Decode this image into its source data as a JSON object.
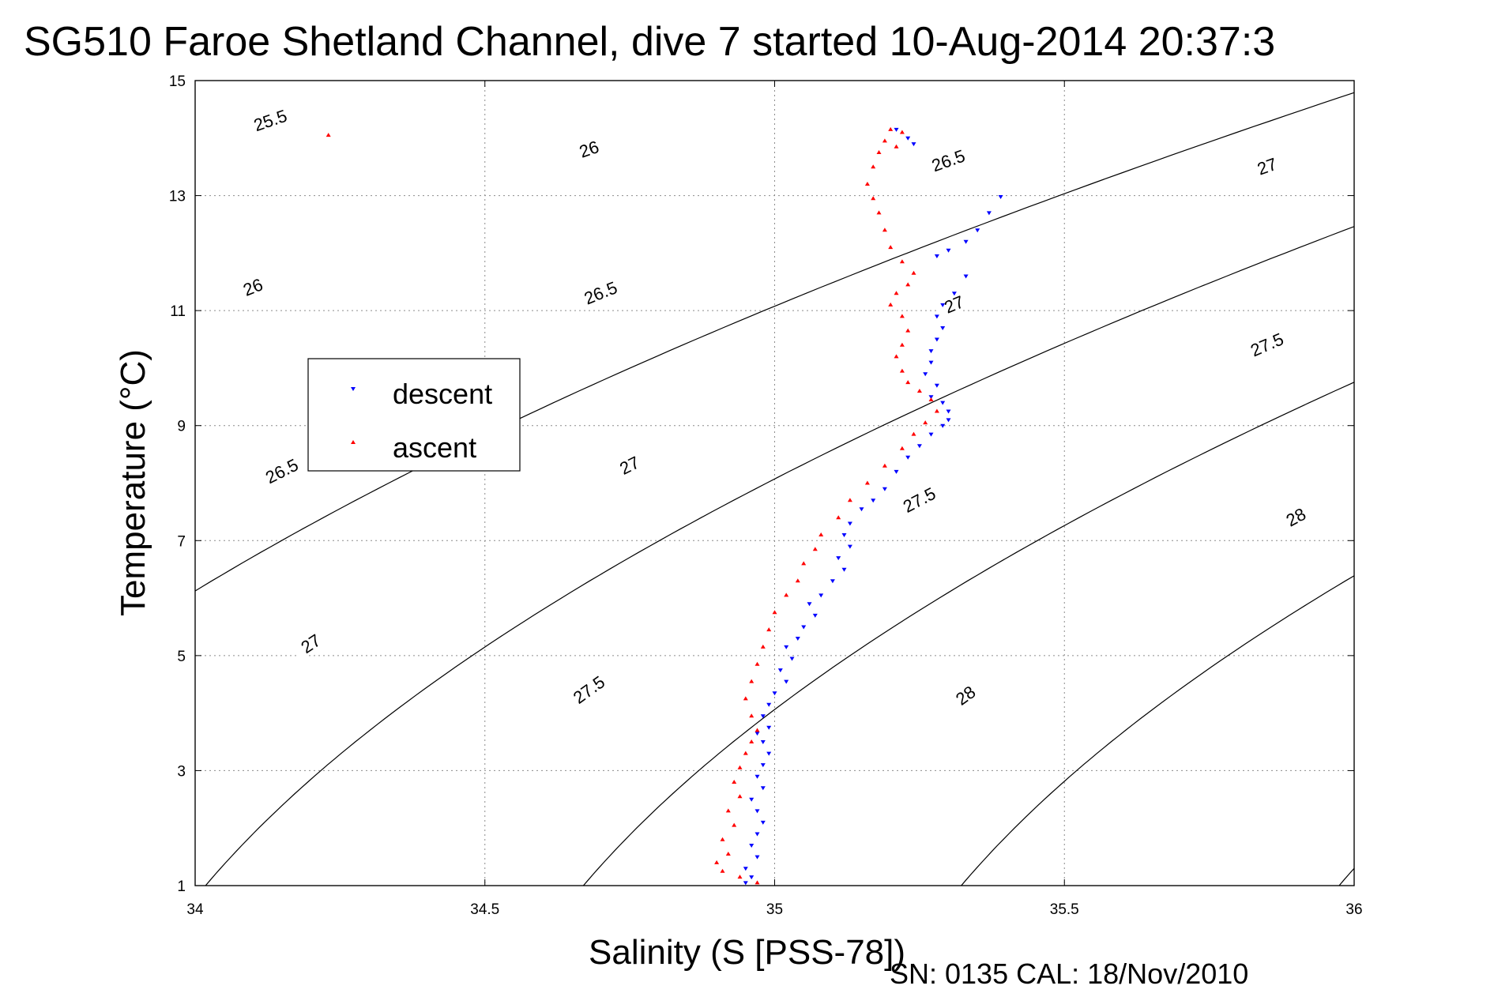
{
  "chart_data": {
    "type": "scatter",
    "title": "SG510 Faroe Shetland Channel, dive 7 started 10-Aug-2014 20:37:3",
    "xlabel": "Salinity (S [PSS-78])",
    "ylabel": "Temperature (°C)",
    "xlim": [
      34,
      36
    ],
    "ylim": [
      1,
      15
    ],
    "xticks": [
      34,
      34.5,
      35,
      35.5,
      36
    ],
    "yticks": [
      1,
      3,
      5,
      7,
      9,
      11,
      13,
      15
    ],
    "grid": true,
    "legend_position": "left",
    "footer": "SN: 0135  CAL: 18/Nov/2010",
    "series": [
      {
        "name": "descent",
        "color": "#0000ff",
        "marker": "triangle-down",
        "points": [
          [
            35.21,
            14.15
          ],
          [
            35.23,
            14.0
          ],
          [
            35.24,
            13.9
          ],
          [
            35.39,
            12.98
          ],
          [
            35.37,
            12.7
          ],
          [
            35.35,
            12.4
          ],
          [
            35.33,
            12.2
          ],
          [
            35.3,
            12.05
          ],
          [
            35.28,
            11.95
          ],
          [
            35.33,
            11.6
          ],
          [
            35.31,
            11.3
          ],
          [
            35.29,
            11.1
          ],
          [
            35.28,
            10.9
          ],
          [
            35.29,
            10.7
          ],
          [
            35.28,
            10.5
          ],
          [
            35.27,
            10.3
          ],
          [
            35.27,
            10.1
          ],
          [
            35.26,
            9.9
          ],
          [
            35.28,
            9.7
          ],
          [
            35.27,
            9.5
          ],
          [
            35.29,
            9.4
          ],
          [
            35.3,
            9.25
          ],
          [
            35.3,
            9.1
          ],
          [
            35.29,
            9.0
          ],
          [
            35.27,
            8.85
          ],
          [
            35.25,
            8.65
          ],
          [
            35.23,
            8.45
          ],
          [
            35.21,
            8.2
          ],
          [
            35.19,
            7.9
          ],
          [
            35.17,
            7.7
          ],
          [
            35.15,
            7.55
          ],
          [
            35.13,
            7.3
          ],
          [
            35.12,
            7.1
          ],
          [
            35.13,
            6.9
          ],
          [
            35.11,
            6.7
          ],
          [
            35.12,
            6.5
          ],
          [
            35.1,
            6.3
          ],
          [
            35.08,
            6.05
          ],
          [
            35.06,
            5.9
          ],
          [
            35.07,
            5.7
          ],
          [
            35.05,
            5.5
          ],
          [
            35.04,
            5.3
          ],
          [
            35.02,
            5.15
          ],
          [
            35.03,
            4.95
          ],
          [
            35.01,
            4.75
          ],
          [
            35.02,
            4.55
          ],
          [
            35.0,
            4.35
          ],
          [
            34.99,
            4.15
          ],
          [
            34.98,
            3.95
          ],
          [
            34.99,
            3.75
          ],
          [
            34.97,
            3.65
          ],
          [
            34.98,
            3.5
          ],
          [
            34.99,
            3.3
          ],
          [
            34.98,
            3.1
          ],
          [
            34.97,
            2.9
          ],
          [
            34.98,
            2.7
          ],
          [
            34.96,
            2.5
          ],
          [
            34.97,
            2.3
          ],
          [
            34.98,
            2.1
          ],
          [
            34.97,
            1.9
          ],
          [
            34.96,
            1.7
          ],
          [
            34.97,
            1.5
          ],
          [
            34.95,
            1.3
          ],
          [
            34.96,
            1.15
          ],
          [
            34.95,
            1.05
          ]
        ]
      },
      {
        "name": "ascent",
        "color": "#ff0000",
        "marker": "triangle-up",
        "points": [
          [
            34.23,
            14.05
          ],
          [
            35.2,
            14.15
          ],
          [
            35.22,
            14.1
          ],
          [
            35.19,
            13.95
          ],
          [
            35.21,
            13.85
          ],
          [
            35.18,
            13.75
          ],
          [
            35.17,
            13.5
          ],
          [
            35.16,
            13.2
          ],
          [
            35.17,
            12.95
          ],
          [
            35.18,
            12.7
          ],
          [
            35.19,
            12.4
          ],
          [
            35.2,
            12.1
          ],
          [
            35.22,
            11.85
          ],
          [
            35.24,
            11.65
          ],
          [
            35.23,
            11.45
          ],
          [
            35.21,
            11.3
          ],
          [
            35.2,
            11.1
          ],
          [
            35.22,
            10.9
          ],
          [
            35.23,
            10.65
          ],
          [
            35.22,
            10.4
          ],
          [
            35.21,
            10.2
          ],
          [
            35.22,
            9.95
          ],
          [
            35.23,
            9.75
          ],
          [
            35.25,
            9.6
          ],
          [
            35.27,
            9.45
          ],
          [
            35.28,
            9.25
          ],
          [
            35.26,
            9.05
          ],
          [
            35.24,
            8.85
          ],
          [
            35.22,
            8.6
          ],
          [
            35.19,
            8.3
          ],
          [
            35.16,
            8.0
          ],
          [
            35.13,
            7.7
          ],
          [
            35.11,
            7.4
          ],
          [
            35.08,
            7.1
          ],
          [
            35.07,
            6.85
          ],
          [
            35.05,
            6.6
          ],
          [
            35.04,
            6.3
          ],
          [
            35.02,
            6.05
          ],
          [
            35.0,
            5.75
          ],
          [
            34.99,
            5.45
          ],
          [
            34.98,
            5.15
          ],
          [
            34.97,
            4.85
          ],
          [
            34.96,
            4.55
          ],
          [
            34.95,
            4.25
          ],
          [
            34.96,
            3.95
          ],
          [
            34.97,
            3.7
          ],
          [
            34.96,
            3.5
          ],
          [
            34.95,
            3.3
          ],
          [
            34.94,
            3.05
          ],
          [
            34.93,
            2.8
          ],
          [
            34.94,
            2.55
          ],
          [
            34.92,
            2.3
          ],
          [
            34.93,
            2.05
          ],
          [
            34.91,
            1.8
          ],
          [
            34.92,
            1.55
          ],
          [
            34.9,
            1.4
          ],
          [
            34.91,
            1.25
          ],
          [
            34.94,
            1.15
          ],
          [
            34.97,
            1.05
          ]
        ]
      }
    ],
    "contours": [
      {
        "label": "25.5",
        "labels_at": [
          [
            34.13,
            14.3
          ]
        ]
      },
      {
        "label": "26",
        "labels_at": [
          [
            34.1,
            11.4
          ],
          [
            34.68,
            13.8
          ]
        ]
      },
      {
        "label": "26.5",
        "labels_at": [
          [
            34.15,
            8.2
          ],
          [
            34.7,
            11.3
          ],
          [
            35.3,
            13.6
          ]
        ]
      },
      {
        "label": "27",
        "labels_at": [
          [
            34.2,
            5.2
          ],
          [
            34.75,
            8.3
          ],
          [
            35.31,
            11.1
          ],
          [
            35.85,
            13.5
          ]
        ]
      },
      {
        "label": "27.5",
        "labels_at": [
          [
            34.68,
            4.4
          ],
          [
            35.25,
            7.7
          ],
          [
            35.85,
            10.4
          ]
        ]
      },
      {
        "label": "28",
        "labels_at": [
          [
            35.33,
            4.3
          ],
          [
            35.9,
            7.4
          ]
        ]
      }
    ]
  }
}
